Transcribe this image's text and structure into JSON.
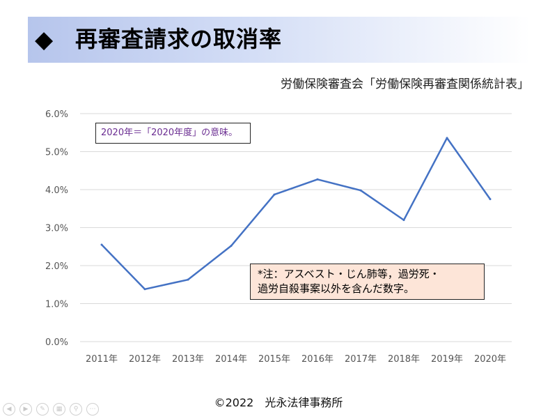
{
  "slide": {
    "title_bullet": "◆",
    "title": "再審査請求の取消率",
    "source": "労働保険審査会「労働保険再審査関係統計表」",
    "note_year": "2020年＝「2020年度」の意味。",
    "note_exclusion_line1": "*注：アスベスト・じん肺等，過労死・",
    "note_exclusion_line2": "過労自殺事案以外を含んだ数字。",
    "footer_copyright": "©2022",
    "footer_org": "光永法律事務所"
  },
  "nav_icons": [
    "arrow-left-icon",
    "arrow-right-icon",
    "pen-icon",
    "slides-icon",
    "zoom-icon",
    "more-icon"
  ],
  "colors": {
    "line": "#4472c4",
    "grid": "#d9d9d9",
    "title_band": "#b6c5ec",
    "note_bg": "#fde5d8",
    "note_text": "#6a2c91"
  },
  "chart_data": {
    "type": "line",
    "categories": [
      "2011年",
      "2012年",
      "2013年",
      "2014年",
      "2015年",
      "2016年",
      "2017年",
      "2018年",
      "2019年",
      "2020年"
    ],
    "series": [
      {
        "values": [
          2.55,
          1.38,
          1.63,
          2.52,
          3.87,
          4.27,
          3.98,
          3.2,
          5.36,
          3.75
        ]
      }
    ],
    "yticks": [
      "0.0%",
      "1.0%",
      "2.0%",
      "3.0%",
      "4.0%",
      "5.0%",
      "6.0%"
    ],
    "ylim": [
      0,
      6
    ],
    "y_unit": "%",
    "grid": true,
    "legend": "none"
  }
}
